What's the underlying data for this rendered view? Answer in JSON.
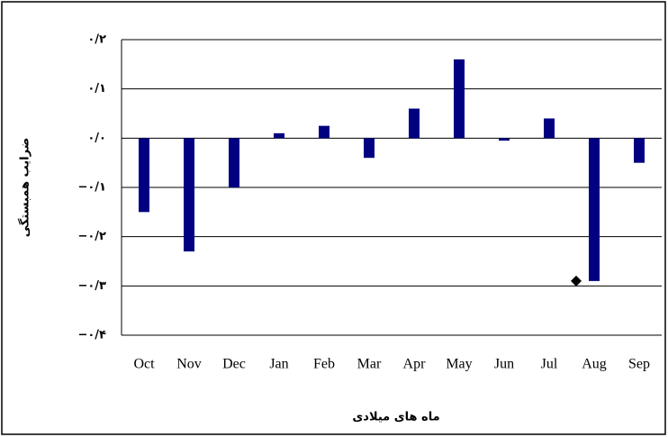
{
  "chart_data": {
    "type": "bar",
    "y_axis_label": "ضرایب همبستگی",
    "x_axis_label": "ماه های میلادی",
    "categories": [
      "Oct",
      "Nov",
      "Dec",
      "Jan",
      "Feb",
      "Mar",
      "Apr",
      "May",
      "Jun",
      "Jul",
      "Aug",
      "Sep"
    ],
    "values": [
      -0.15,
      -0.23,
      -0.1,
      0.01,
      0.025,
      -0.04,
      0.06,
      0.16,
      -0.005,
      0.04,
      -0.29,
      -0.05
    ],
    "color": "#000080",
    "marker": {
      "category": "Aug",
      "value": -0.29,
      "color": "#000000"
    },
    "ylim": [
      -0.4,
      0.2
    ],
    "yticks": [
      {
        "value": 0.2,
        "label": "۰/۲"
      },
      {
        "value": 0.1,
        "label": "۰/۱"
      },
      {
        "value": 0,
        "label": "۰/۰"
      },
      {
        "value": -0.1,
        "label": "−۰/۱"
      },
      {
        "value": -0.2,
        "label": "−۰/۲"
      },
      {
        "value": -0.3,
        "label": "−۰/۳"
      },
      {
        "value": -0.4,
        "label": "−۰/۴"
      }
    ],
    "grid": true
  }
}
